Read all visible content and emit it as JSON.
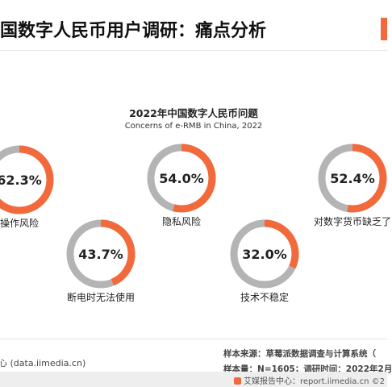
{
  "header": {
    "title": "国数字人民币用户调研：痛点分析"
  },
  "chart_data": {
    "type": "pie",
    "title": "2022年中国数字人民币问题",
    "subtitle": "Concerns of e-RMB in China, 2022",
    "categories": [
      "操作风险",
      "隐私风险",
      "对数字货币缺乏了",
      "断电时无法使用",
      "技术不稳定"
    ],
    "values": [
      62.3,
      54.0,
      52.4,
      43.7,
      32.0
    ],
    "value_labels": [
      "62.3%",
      "54.0%",
      "52.4%",
      "43.7%",
      "32.0%"
    ],
    "ylim": [
      0,
      100
    ],
    "colors": {
      "value": "#f26a3c",
      "rest": "#b4b4b4"
    }
  },
  "footer": {
    "left": "心 (data.iimedia.cn)",
    "source": "样本来源：草莓派数据调查与计算系统（",
    "sample": "样本量：N=1605；调研时间：2022年2月",
    "brand": "艾媒报告中心：report.iimedia.cn  ©2"
  }
}
